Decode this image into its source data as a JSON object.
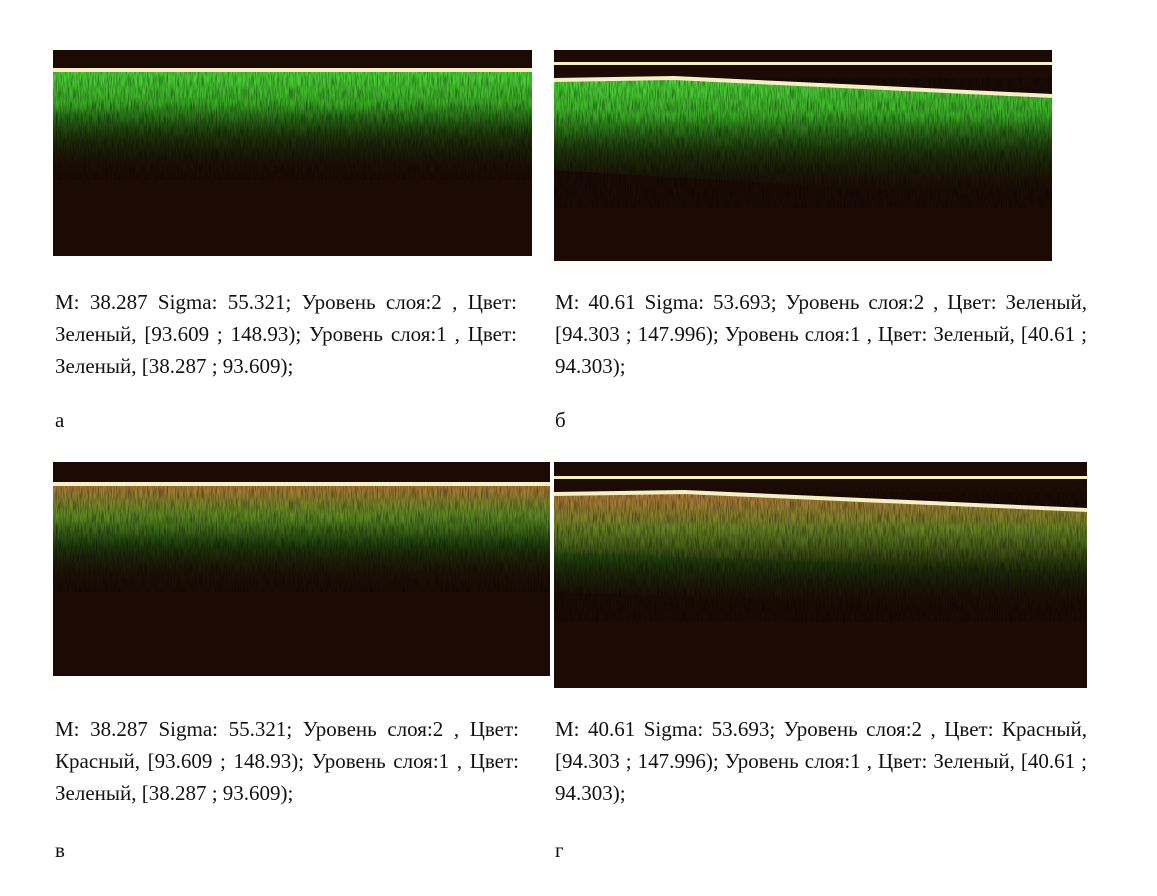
{
  "panels": [
    {
      "caption": "M: 38.287 Sigma: 55.321; Уровень слоя:2 , Цвет: Зеленый, [93.609 ; 148.93); Уровень слоя:1 , Цвет: Зеленый, [38.287 ; 93.609);",
      "label": "а"
    },
    {
      "caption": "M: 40.61 Sigma: 53.693; Уровень слоя:2 , Цвет: Зеленый, [94.303 ; 147.996); Уровень слоя:1 , Цвет: Зеленый, [40.61 ; 94.303);",
      "label": "б"
    },
    {
      "caption": "M: 38.287 Sigma: 55.321; Уровень слоя:2 , Цвет: Красный, [93.609 ; 148.93); Уровень слоя:1 , Цвет: Зеленый, [38.287 ; 93.609);",
      "label": "в"
    },
    {
      "caption": "M: 40.61 Sigma: 53.693; Уровень слоя:2 , Цвет: Красный, [94.303 ; 147.996); Уровень слоя:1 , Цвет: Зеленый, [40.61 ; 94.303);",
      "label": "г"
    }
  ]
}
